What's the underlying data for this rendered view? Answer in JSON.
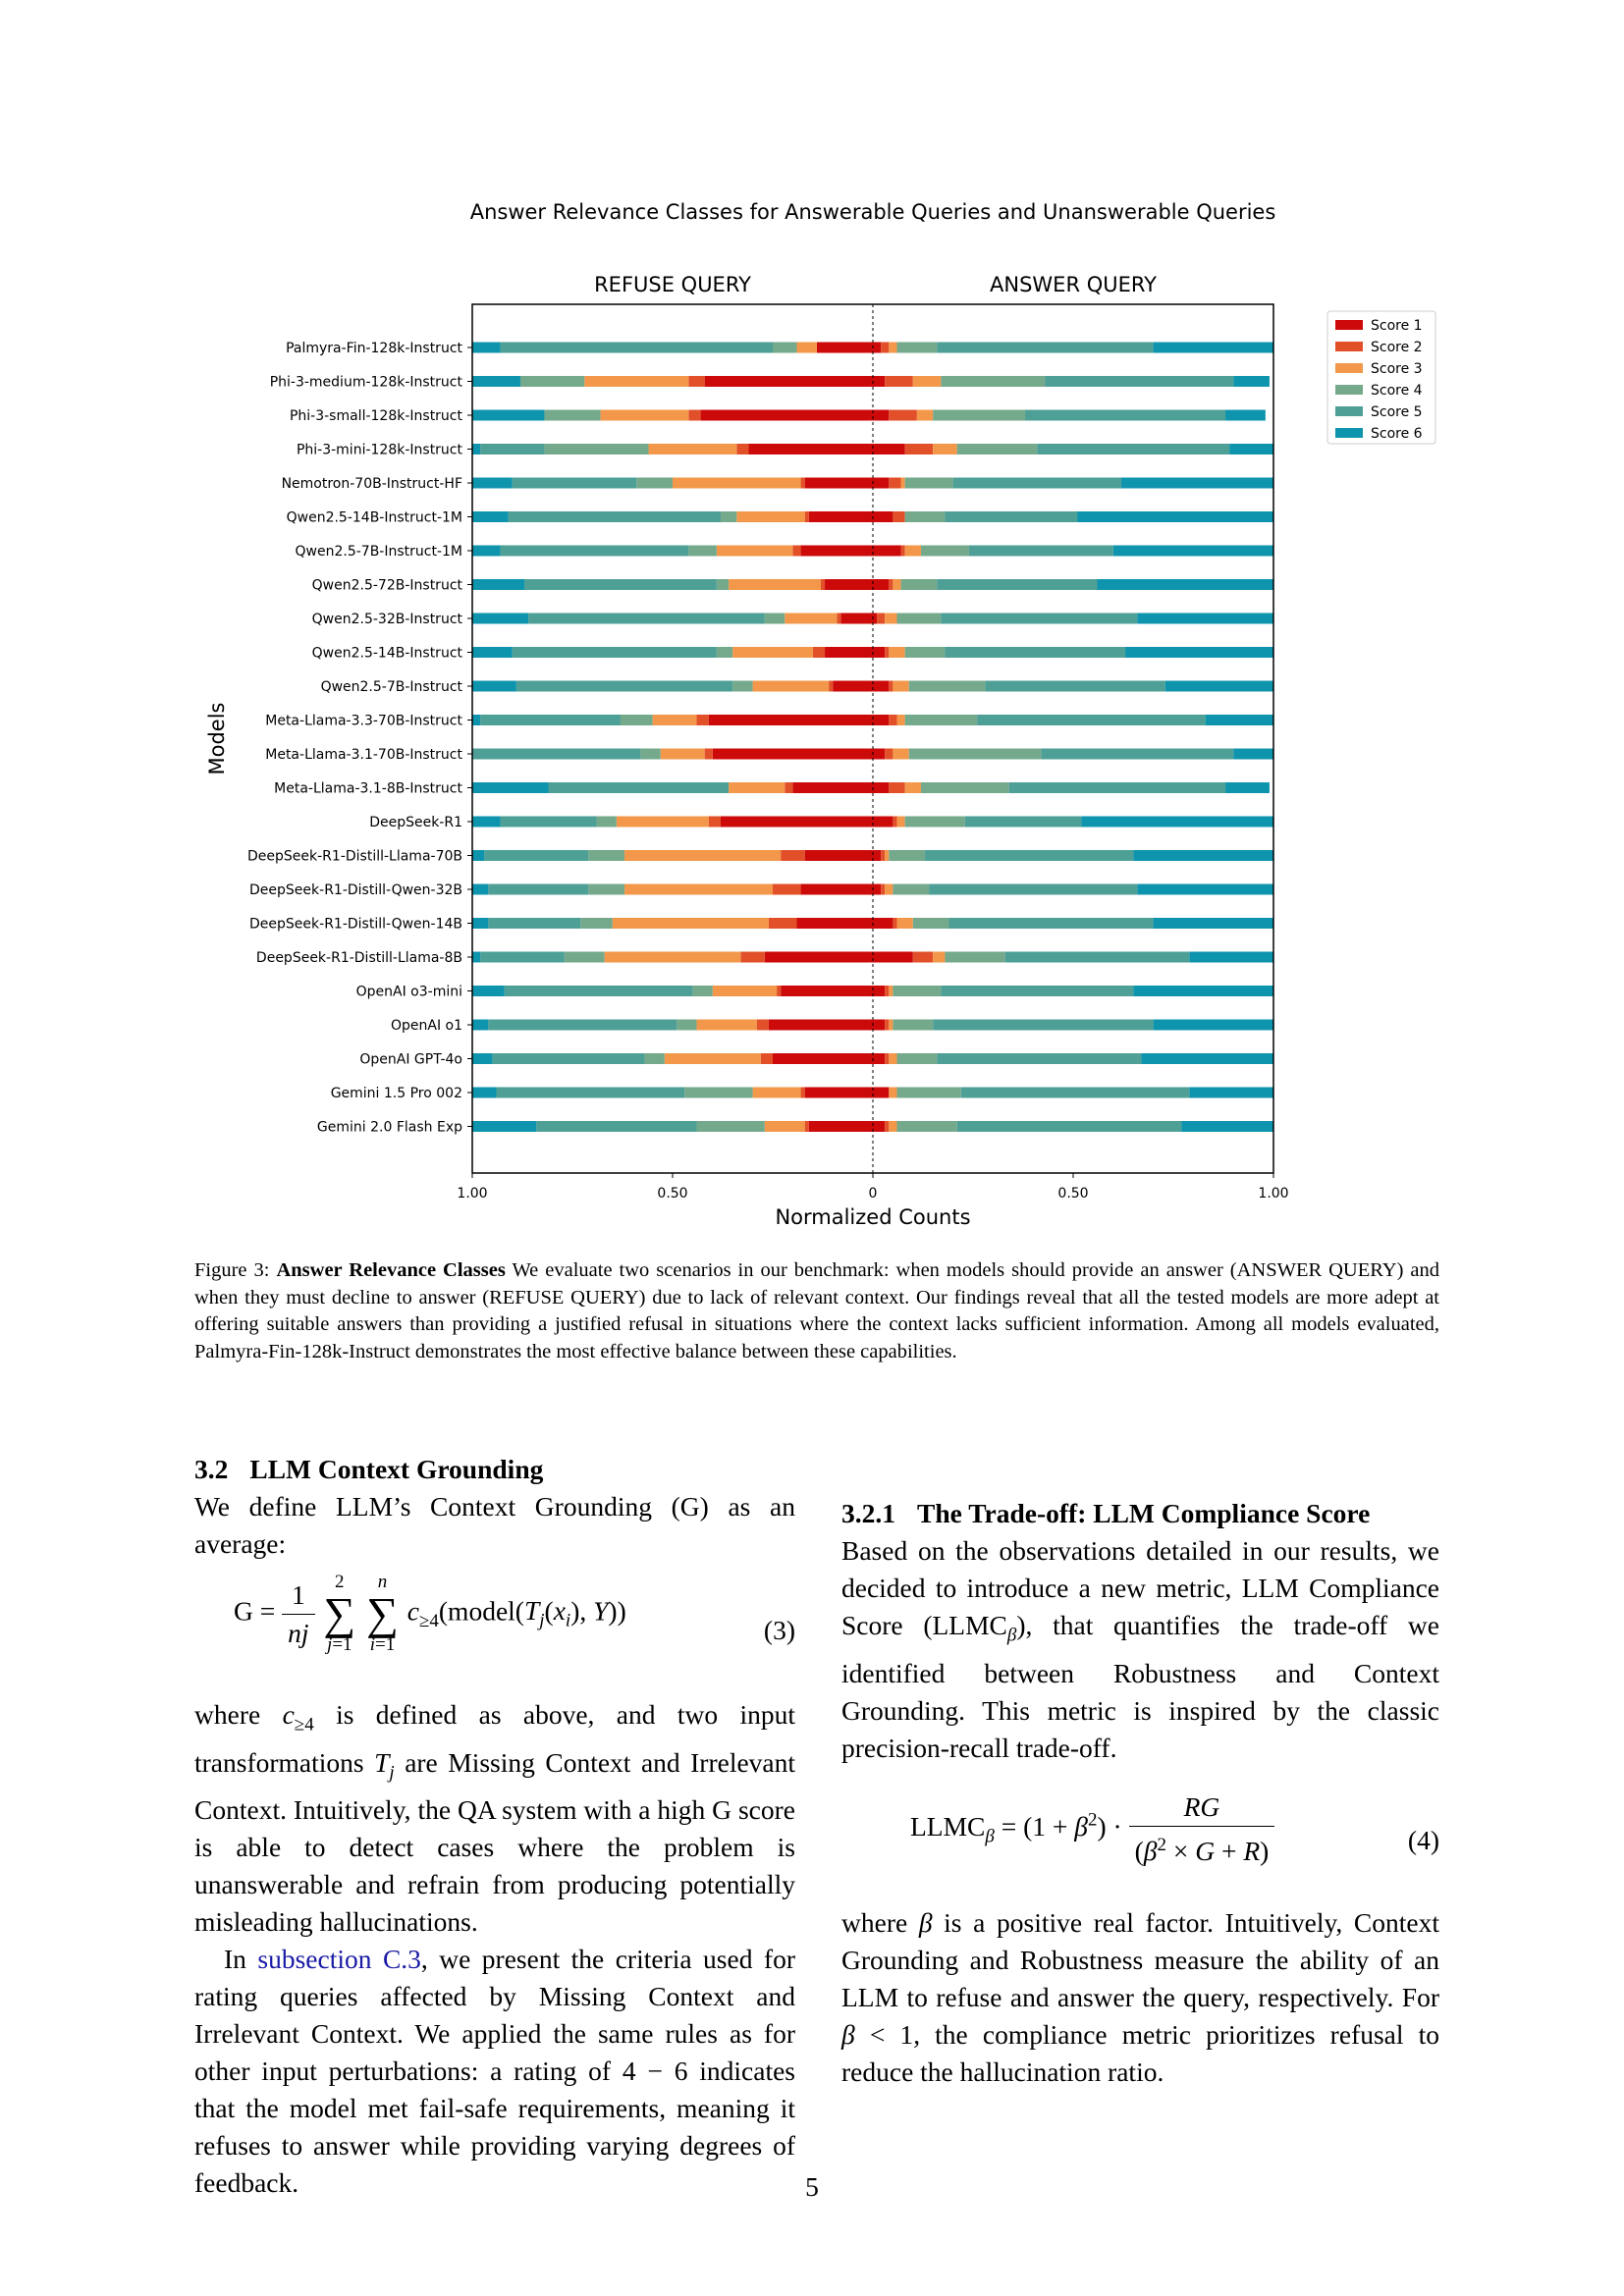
{
  "figure": {
    "figure_label": "Figure 3:",
    "caption_title": "Answer Relevance Classes",
    "caption_text": "We evaluate two scenarios in our benchmark: when models should provide an answer (ANSWER QUERY) and when they must decline to answer (REFUSE QUERY) due to lack of relevant context. Our findings reveal that all the tested models are more adept at offering suitable answers than providing a justified refusal in situations where the context lacks sufficient information. Among all models evaluated, Palmyra-Fin-128k-Instruct demonstrates the most effective balance between these capabilities."
  },
  "chart_data": {
    "type": "bar",
    "orientation": "horizontal-diverging",
    "title": "Answer Relevance Classes for Answerable Queries and Unanswerable Queries",
    "panel_labels": [
      "REFUSE QUERY",
      "ANSWER QUERY"
    ],
    "xlabel": "Normalized Counts",
    "ylabel": "Models",
    "x_ticks": [
      "1.00",
      "0.50",
      "0",
      "0.50",
      "1.00"
    ],
    "xlim": [
      -1,
      1
    ],
    "legend_position": "outside-right",
    "colors": {
      "Score 1": "#cc0a0a",
      "Score 2": "#e2502a",
      "Score 3": "#f3984a",
      "Score 4": "#74a98c",
      "Score 5": "#4e9f96",
      "Score 6": "#0f94ad"
    },
    "series": [
      {
        "name": "Score 1"
      },
      {
        "name": "Score 2"
      },
      {
        "name": "Score 3"
      },
      {
        "name": "Score 4"
      },
      {
        "name": "Score 5"
      },
      {
        "name": "Score 6"
      }
    ],
    "categories": [
      "Palmyra-Fin-128k-Instruct",
      "Phi-3-medium-128k-Instruct",
      "Phi-3-small-128k-Instruct",
      "Phi-3-mini-128k-Instruct",
      "Nemotron-70B-Instruct-HF",
      "Qwen2.5-14B-Instruct-1M",
      "Qwen2.5-7B-Instruct-1M",
      "Qwen2.5-72B-Instruct",
      "Qwen2.5-32B-Instruct",
      "Qwen2.5-14B-Instruct",
      "Qwen2.5-7B-Instruct",
      "Meta-Llama-3.3-70B-Instruct",
      "Meta-Llama-3.1-70B-Instruct",
      "Meta-Llama-3.1-8B-Instruct",
      "DeepSeek-R1",
      "DeepSeek-R1-Distill-Llama-70B",
      "DeepSeek-R1-Distill-Qwen-32B",
      "DeepSeek-R1-Distill-Qwen-14B",
      "DeepSeek-R1-Distill-Llama-8B",
      "OpenAI o3-mini",
      "OpenAI o1",
      "OpenAI GPT-4o",
      "Gemini 1.5 Pro 002",
      "Gemini 2.0 Flash Exp"
    ],
    "refuse": [
      [
        0.14,
        0.0,
        0.05,
        0.06,
        0.68,
        0.07
      ],
      [
        0.42,
        0.04,
        0.26,
        0.16,
        0.0,
        0.12
      ],
      [
        0.43,
        0.03,
        0.22,
        0.14,
        0.0,
        0.18
      ],
      [
        0.31,
        0.03,
        0.22,
        0.26,
        0.16,
        0.02
      ],
      [
        0.17,
        0.01,
        0.32,
        0.09,
        0.31,
        0.1
      ],
      [
        0.16,
        0.01,
        0.17,
        0.04,
        0.53,
        0.09
      ],
      [
        0.18,
        0.02,
        0.19,
        0.07,
        0.47,
        0.07
      ],
      [
        0.12,
        0.01,
        0.23,
        0.03,
        0.48,
        0.13
      ],
      [
        0.08,
        0.01,
        0.13,
        0.05,
        0.59,
        0.14
      ],
      [
        0.12,
        0.03,
        0.2,
        0.04,
        0.51,
        0.1
      ],
      [
        0.1,
        0.01,
        0.19,
        0.05,
        0.54,
        0.11
      ],
      [
        0.41,
        0.03,
        0.11,
        0.08,
        0.35,
        0.02
      ],
      [
        0.4,
        0.02,
        0.11,
        0.05,
        0.42,
        0.0
      ],
      [
        0.2,
        0.02,
        0.14,
        0.0,
        0.45,
        0.19
      ],
      [
        0.38,
        0.03,
        0.23,
        0.05,
        0.24,
        0.07
      ],
      [
        0.17,
        0.06,
        0.39,
        0.09,
        0.26,
        0.03
      ],
      [
        0.18,
        0.07,
        0.37,
        0.09,
        0.25,
        0.04
      ],
      [
        0.19,
        0.07,
        0.39,
        0.08,
        0.23,
        0.04
      ],
      [
        0.27,
        0.06,
        0.34,
        0.1,
        0.21,
        0.02
      ],
      [
        0.23,
        0.01,
        0.16,
        0.05,
        0.47,
        0.08
      ],
      [
        0.26,
        0.03,
        0.15,
        0.05,
        0.47,
        0.04
      ],
      [
        0.25,
        0.03,
        0.24,
        0.05,
        0.38,
        0.05
      ],
      [
        0.17,
        0.01,
        0.12,
        0.17,
        0.47,
        0.06
      ],
      [
        0.16,
        0.01,
        0.1,
        0.17,
        0.4,
        0.16
      ]
    ],
    "answer": [
      [
        0.02,
        0.02,
        0.02,
        0.1,
        0.54,
        0.3
      ],
      [
        0.03,
        0.07,
        0.07,
        0.26,
        0.47,
        0.09
      ],
      [
        0.04,
        0.07,
        0.04,
        0.23,
        0.5,
        0.1
      ],
      [
        0.08,
        0.07,
        0.06,
        0.2,
        0.48,
        0.11
      ],
      [
        0.04,
        0.03,
        0.01,
        0.12,
        0.42,
        0.38
      ],
      [
        0.05,
        0.03,
        0.0,
        0.1,
        0.33,
        0.49
      ],
      [
        0.07,
        0.01,
        0.04,
        0.12,
        0.36,
        0.4
      ],
      [
        0.04,
        0.01,
        0.02,
        0.09,
        0.4,
        0.44
      ],
      [
        0.01,
        0.02,
        0.03,
        0.11,
        0.49,
        0.34
      ],
      [
        0.03,
        0.01,
        0.04,
        0.1,
        0.45,
        0.37
      ],
      [
        0.04,
        0.01,
        0.04,
        0.19,
        0.45,
        0.27
      ],
      [
        0.04,
        0.02,
        0.02,
        0.18,
        0.57,
        0.17
      ],
      [
        0.03,
        0.02,
        0.04,
        0.33,
        0.48,
        0.1
      ],
      [
        0.04,
        0.04,
        0.04,
        0.22,
        0.54,
        0.11
      ],
      [
        0.05,
        0.01,
        0.02,
        0.15,
        0.29,
        0.48
      ],
      [
        0.02,
        0.01,
        0.01,
        0.09,
        0.52,
        0.35
      ],
      [
        0.02,
        0.01,
        0.02,
        0.09,
        0.52,
        0.34
      ],
      [
        0.05,
        0.01,
        0.04,
        0.09,
        0.51,
        0.3
      ],
      [
        0.1,
        0.05,
        0.03,
        0.15,
        0.46,
        0.21
      ],
      [
        0.03,
        0.01,
        0.01,
        0.12,
        0.48,
        0.35
      ],
      [
        0.03,
        0.01,
        0.01,
        0.1,
        0.55,
        0.3
      ],
      [
        0.03,
        0.01,
        0.02,
        0.1,
        0.51,
        0.33
      ],
      [
        0.04,
        0.0,
        0.02,
        0.16,
        0.57,
        0.21
      ],
      [
        0.03,
        0.01,
        0.02,
        0.15,
        0.56,
        0.23
      ]
    ]
  },
  "section": {
    "number": "3.2",
    "title": "LLM Context Grounding",
    "para1": "We define LLM’s Context Grounding (G) as an average:",
    "eq3_number": "(3)",
    "para2_pre": "where",
    "para2_post": "is defined as above, and two input transformations",
    "para2_mid": "are Missing Context and Irrelevant Context. Intuitively, the QA system with a high G score is able to detect cases where the problem is unanswerable and refrain from producing potentially misleading hallucinations.",
    "para3_pre": "In",
    "para3_link": "subsection C.3",
    "para3_post": ", we present the criteria used for rating queries affected by Missing Context and Irrelevant Context. We applied the same rules as for other input perturbations: a rating of 4 − 6 indicates that the model met fail-safe requirements, meaning it refuses to answer while providing varying degrees of feedback."
  },
  "subsection": {
    "number": "3.2.1",
    "title": "The Trade-off: LLM Compliance Score",
    "para1": "Based on the observations detailed in our results, we decided to introduce a new metric, LLM Compliance Score (LLMC",
    "para1_post": "), that quantifies the trade-off we identified between Robustness and Context Grounding. This metric is inspired by the classic precision-recall trade-off.",
    "eq4_number": "(4)",
    "para2_pre": "where",
    "para2_mid": "is a positive real factor. Intuitively, Context Grounding and Robustness measure the ability of an LLM to refuse and answer the query, respectively. For",
    "para2_post": ", the compliance metric prioritizes refusal to reduce the hallucination ratio."
  },
  "page_number": "5"
}
